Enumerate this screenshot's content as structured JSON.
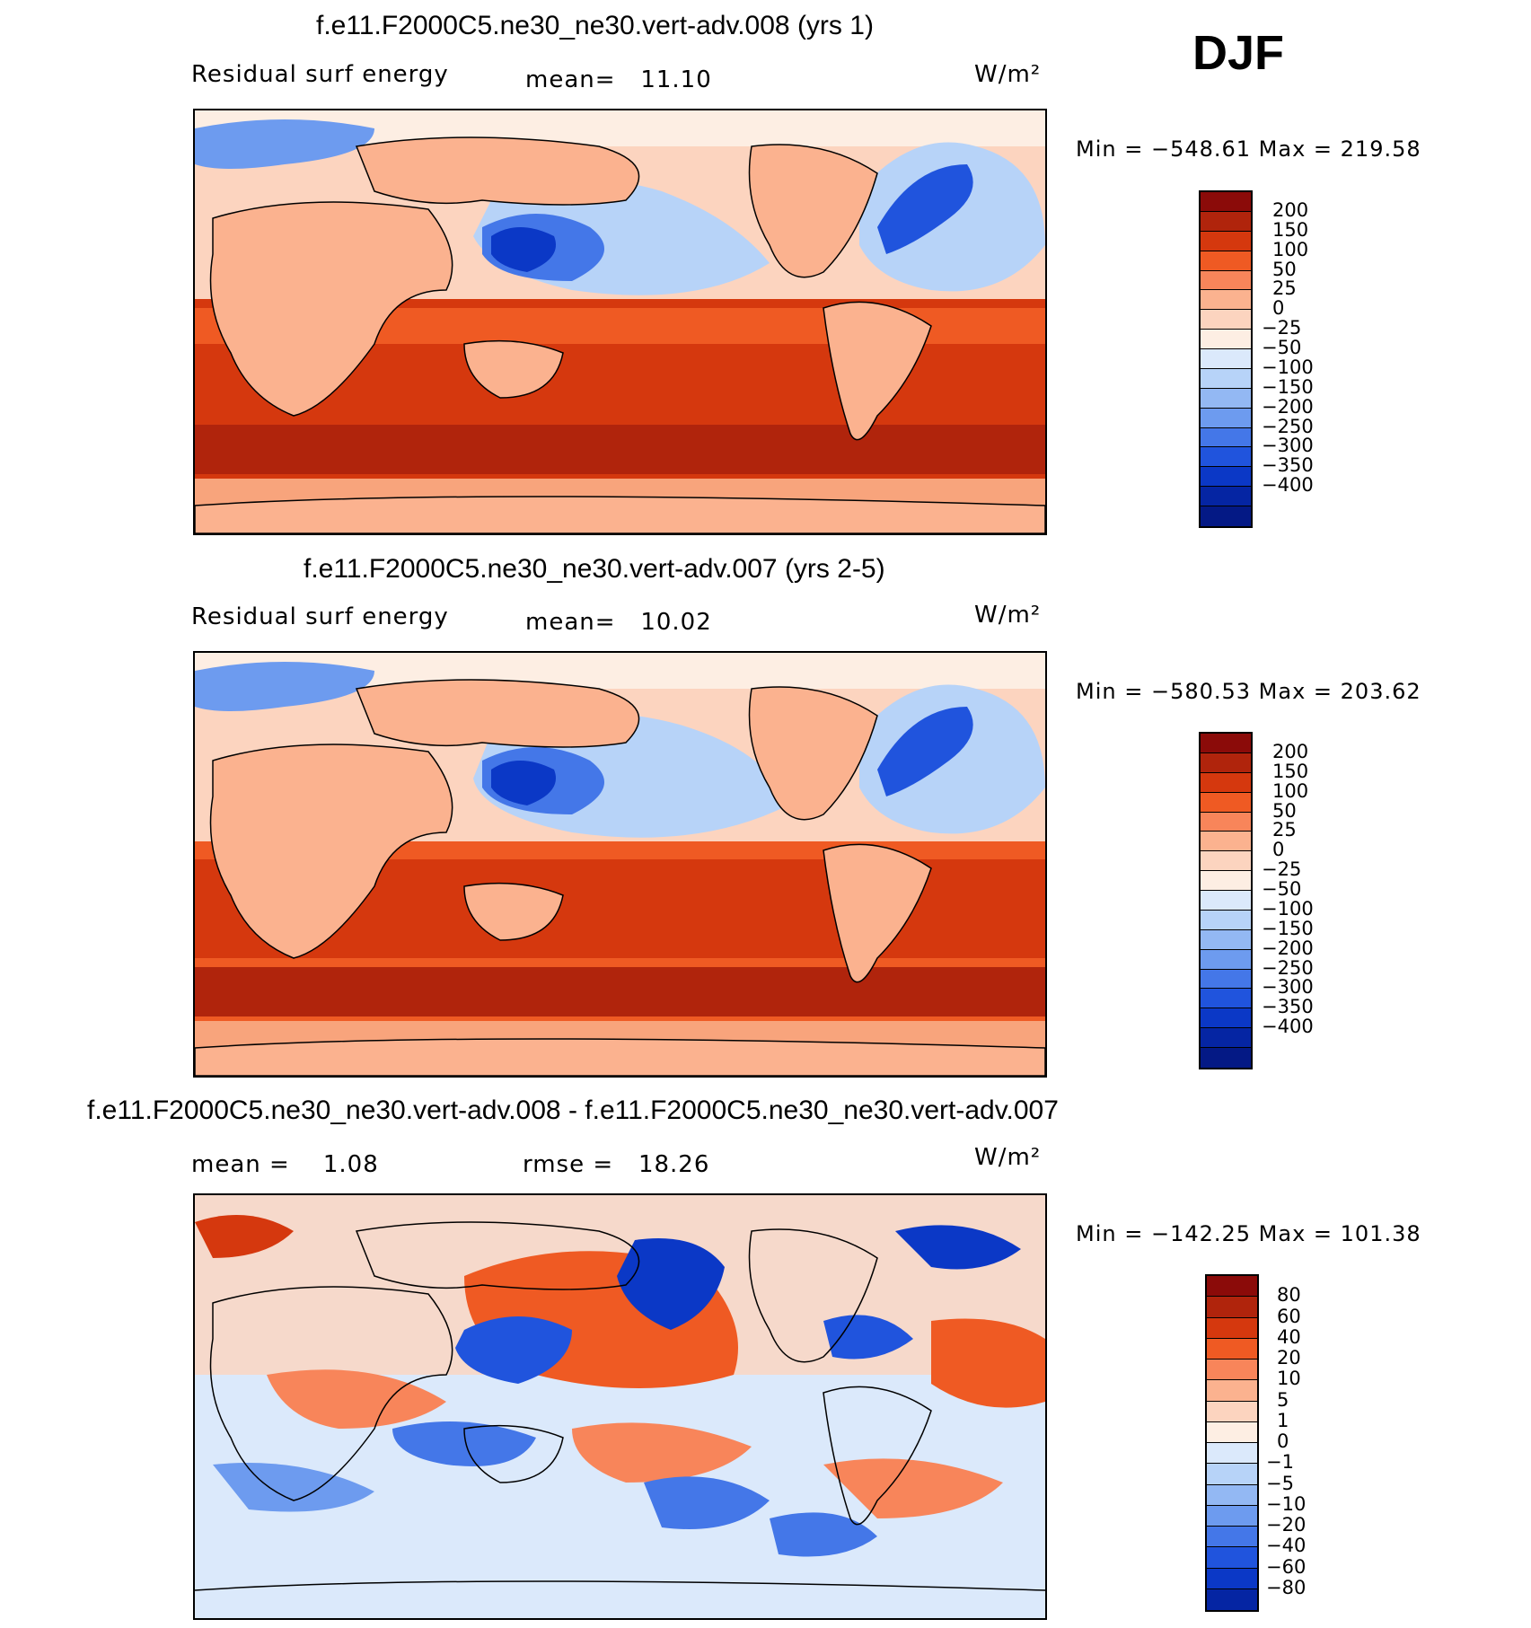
{
  "season": "DJF",
  "units": "W/m²",
  "panels": [
    {
      "title": "f.e11.F2000C5.ne30_ne30.vert-adv.008 (yrs 1)",
      "left_label": "Residual surf energy",
      "stat_text": "mean=   11.10",
      "units": "W/m²",
      "minmax": "Min = −548.61 Max = 219.58"
    },
    {
      "title": "f.e11.F2000C5.ne30_ne30.vert-adv.007 (yrs 2-5)",
      "left_label": "Residual surf energy",
      "stat_text": "mean=   10.02",
      "units": "W/m²",
      "minmax": "Min = −580.53 Max = 203.62"
    },
    {
      "title": "f.e11.F2000C5.ne30_ne30.vert-adv.008 - f.e11.F2000C5.ne30_ne30.vert-adv.007",
      "left_label": "mean =    1.08",
      "stat_text": "rmse =   18.26",
      "units": "W/m²",
      "minmax": "Min = −142.25 Max = 101.38"
    }
  ],
  "colorbar_main": {
    "colors": [
      "#8b0b09",
      "#b0240c",
      "#d5380e",
      "#ef5a23",
      "#f8855a",
      "#fbb28f",
      "#fcd4bf",
      "#fdeee3",
      "#dbe9fb",
      "#b7d3f8",
      "#93b8f3",
      "#6d9bef",
      "#4477e8",
      "#2054dd",
      "#0b38c6",
      "#0525a3",
      "#041985"
    ],
    "labels": [
      "200",
      "150",
      "100",
      "50",
      "25",
      "0",
      "−25",
      "−50",
      "−100",
      "−150",
      "−200",
      "−250",
      "−300",
      "−350",
      "−400"
    ]
  },
  "colorbar_diff": {
    "colors": [
      "#8b0b09",
      "#b0240c",
      "#d5380e",
      "#ef5a23",
      "#f8855a",
      "#fbb28f",
      "#fcd4bf",
      "#fdeee3",
      "#dbe9fb",
      "#b7d3f8",
      "#93b8f3",
      "#6d9bef",
      "#4477e8",
      "#2054dd",
      "#0b38c6",
      "#0525a3"
    ],
    "labels": [
      "80",
      "60",
      "40",
      "20",
      "10",
      "5",
      "1",
      "0",
      "−1",
      "−5",
      "−10",
      "−20",
      "−40",
      "−60",
      "−80"
    ]
  }
}
